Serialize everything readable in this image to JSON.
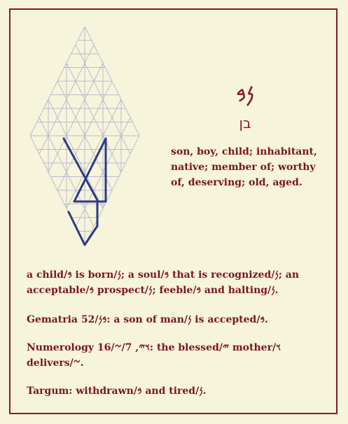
{
  "word": {
    "paleo": "𐤍𐤁",
    "hebrew": "בן",
    "definition": "son, boy, child; inhabitant, native; member of; worthy of, deserving; old, aged."
  },
  "paragraphs": [
    "a child/𐤁 is born/𐤍; a soul/𐤁 that is recognized/𐤍; an acceptable/𐤁 prospect/𐤍; feeble/𐤁 and halting/𐤍.",
    "Gematria 52/𐤁𐤍: a son of man/𐤍 is accepted/𐤁.",
    "Numerology 16/𐤅𐤉, 7/𐤆: the blessed/𐤉 mother/𐤅 delivers/𐤆.",
    "Targum: withdrawn/𐤁 and tired/𐤍."
  ],
  "colors": {
    "background": "#f7f4dc",
    "text": "#7a1420",
    "border": "#8a1a22",
    "grid": "#b8bccc",
    "letter_stroke": "#2c3a86"
  }
}
